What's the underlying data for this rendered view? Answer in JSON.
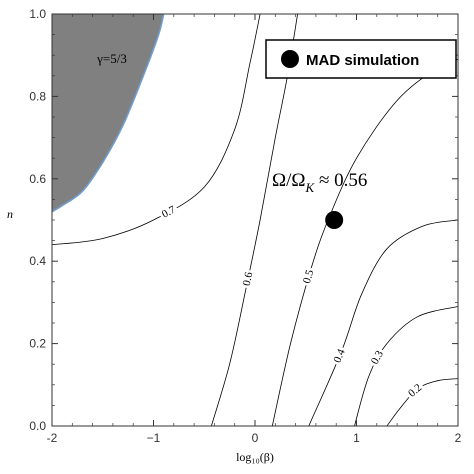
{
  "chart_data": {
    "type": "contour",
    "xlabel": "log₁₀(β)",
    "ylabel": "n",
    "xlim": [
      -2,
      2
    ],
    "ylim": [
      0,
      1
    ],
    "xticks": [
      "-2",
      "−1",
      "0",
      "1",
      "2"
    ],
    "yticks": [
      "0.0",
      "0.2",
      "0.4",
      "0.6",
      "0.8",
      "1.0"
    ],
    "contours": [
      {
        "level": "0.7",
        "points": [
          [
            -2.0,
            0.44
          ],
          [
            -1.5,
            0.455
          ],
          [
            -1.0,
            0.5
          ],
          [
            -0.5,
            0.58
          ],
          [
            -0.2,
            0.72
          ],
          [
            -0.05,
            0.88
          ],
          [
            0.05,
            1.0
          ]
        ]
      },
      {
        "level": "0.6",
        "points": [
          [
            -0.43,
            0.0
          ],
          [
            -0.25,
            0.15
          ],
          [
            -0.1,
            0.32
          ],
          [
            0.05,
            0.5
          ],
          [
            0.2,
            0.7
          ],
          [
            0.32,
            0.85
          ],
          [
            0.42,
            1.0
          ]
        ]
      },
      {
        "level": "0.5",
        "points": [
          [
            0.17,
            0.0
          ],
          [
            0.35,
            0.2
          ],
          [
            0.55,
            0.38
          ],
          [
            0.72,
            0.5
          ],
          [
            1.0,
            0.65
          ],
          [
            1.4,
            0.79
          ],
          [
            1.8,
            0.87
          ],
          [
            2.0,
            0.89
          ]
        ]
      },
      {
        "level": "0.4",
        "points": [
          [
            0.53,
            0.0
          ],
          [
            0.85,
            0.18
          ],
          [
            1.05,
            0.32
          ],
          [
            1.3,
            0.43
          ],
          [
            1.65,
            0.485
          ],
          [
            2.0,
            0.5
          ]
        ]
      },
      {
        "level": "0.3",
        "points": [
          [
            0.98,
            0.0
          ],
          [
            1.12,
            0.12
          ],
          [
            1.3,
            0.2
          ],
          [
            1.6,
            0.265
          ],
          [
            2.0,
            0.29
          ]
        ]
      },
      {
        "level": "0.2",
        "points": [
          [
            1.3,
            0.0
          ],
          [
            1.42,
            0.04
          ],
          [
            1.6,
            0.09
          ],
          [
            1.8,
            0.11
          ],
          [
            2.0,
            0.115
          ]
        ]
      }
    ],
    "shaded_region": {
      "label": "γ=5/3",
      "color": "#808080",
      "edge_color": "#6f9fcf",
      "boundary": [
        [
          -2.0,
          0.52
        ],
        [
          -1.9,
          0.535
        ],
        [
          -1.7,
          0.57
        ],
        [
          -1.5,
          0.64
        ],
        [
          -1.3,
          0.73
        ],
        [
          -1.1,
          0.85
        ],
        [
          -0.95,
          0.95
        ],
        [
          -0.9,
          1.0
        ]
      ]
    },
    "point": {
      "x": 0.78,
      "y": 0.5,
      "label": "MAD simulation"
    },
    "annotation": {
      "text": "Ω/ΩK ≈ 0.56",
      "main": "Ω/Ω",
      "sub": "K",
      "tail": " ≈ 0.56"
    }
  }
}
